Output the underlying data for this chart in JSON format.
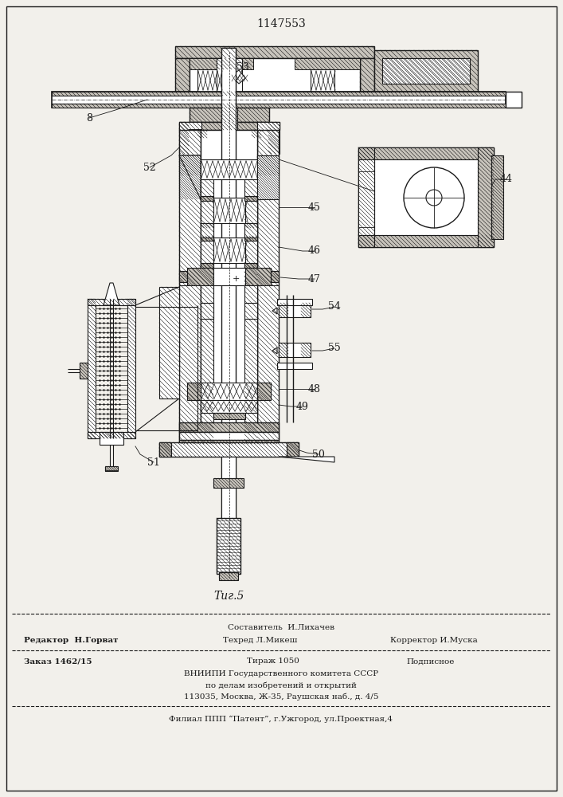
{
  "title": "1147553",
  "fig_label": "Τиг.5",
  "bg_color": "#f2f0eb",
  "line_color": "#1a1a1a",
  "footer": {
    "line1_center": "Составитель  И.Лихачев",
    "line1_left": "Редактор  Н.Горват",
    "line2_center": "Техред Л.Микеш",
    "line2_right": "Корректор И.Муска",
    "line3_left": "Заказ 1462/15",
    "line3_center": "Тираж 1050",
    "line3_right": "Подписное",
    "line4": "ВНИИПИ Государственного комитета СССР",
    "line5": "по делам изобретений и открытий",
    "line6": "113035, Москва, Ж-35, Раушская наб., д. 4/5",
    "line7": "Филиал ППП “Патент”, г.Ужгород, ул.Проектная,4"
  }
}
